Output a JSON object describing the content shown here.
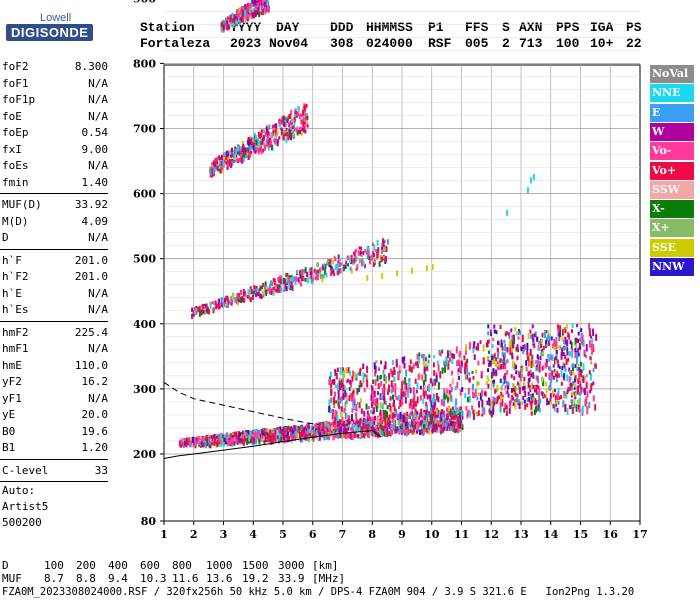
{
  "logo": {
    "line1": "Lowell",
    "line2": "DIGISONDE"
  },
  "header": {
    "labels": [
      "Station",
      "YYYY",
      "DAY",
      "DDD",
      "HHMMSS",
      "P1",
      "FFS",
      "S",
      "AXN",
      "PPS",
      "IGA",
      "PS"
    ],
    "values": [
      "Fortaleza",
      "2023",
      "Nov04",
      "308",
      "024000",
      "RSF",
      "005",
      "2",
      "713",
      "100",
      "10+",
      "22"
    ]
  },
  "params_group1": [
    {
      "name": "foF2",
      "value": "8.300"
    },
    {
      "name": "foF1",
      "value": "N/A"
    },
    {
      "name": "foF1p",
      "value": "N/A"
    },
    {
      "name": "foE",
      "value": "N/A"
    },
    {
      "name": "foEp",
      "value": "0.54"
    },
    {
      "name": "fxI",
      "value": "9.00"
    },
    {
      "name": "foEs",
      "value": "N/A"
    },
    {
      "name": "fmin",
      "value": "1.40"
    }
  ],
  "params_group2": [
    {
      "name": "MUF(D)",
      "value": "33.92"
    },
    {
      "name": "M(D)",
      "value": "4.09"
    },
    {
      "name": "D",
      "value": "N/A"
    }
  ],
  "params_group3": [
    {
      "name": "h`F",
      "value": "201.0"
    },
    {
      "name": "h`F2",
      "value": "201.0"
    },
    {
      "name": "h`E",
      "value": "N/A"
    },
    {
      "name": "h`Es",
      "value": "N/A"
    }
  ],
  "params_group4": [
    {
      "name": "hmF2",
      "value": "225.4"
    },
    {
      "name": "hmF1",
      "value": "N/A"
    },
    {
      "name": "hmE",
      "value": "110.0"
    },
    {
      "name": "yF2",
      "value": "16.2"
    },
    {
      "name": "yF1",
      "value": "N/A"
    },
    {
      "name": "yE",
      "value": "20.0"
    },
    {
      "name": "B0",
      "value": "19.6"
    },
    {
      "name": "B1",
      "value": "1.20"
    }
  ],
  "params_group5": [
    {
      "name": "C-level",
      "value": "33"
    }
  ],
  "autoscaling": {
    "line1": "Auto:",
    "line2": "Artist5",
    "line3": "500200"
  },
  "legend": [
    {
      "label": "NoVal",
      "color": "#8c8c8c"
    },
    {
      "label": "NNE",
      "color": "#1ed8f0"
    },
    {
      "label": "E",
      "color": "#3a9ff2"
    },
    {
      "label": "W",
      "color": "#b0009e"
    },
    {
      "label": "Vo-",
      "color": "#ff3a9a"
    },
    {
      "label": "Vo+",
      "color": "#ee0a44"
    },
    {
      "label": "SSW",
      "color": "#f4a6a6"
    },
    {
      "label": "X-",
      "color": "#0a7d0a"
    },
    {
      "label": "X+",
      "color": "#88bb66"
    },
    {
      "label": "SSE",
      "color": "#cccc00"
    },
    {
      "label": "NNW",
      "color": "#2a18cc"
    }
  ],
  "footer": {
    "d_label": "D",
    "d_values": [
      "100",
      "200",
      "400",
      "600",
      "800",
      "1000",
      "1500",
      "3000",
      "[km]"
    ],
    "muf_label": "MUF",
    "muf_values": [
      "8.7",
      "8.8",
      "9.4",
      "10.3",
      "11.6",
      "13.6",
      "19.2",
      "33.9",
      "[MHz]"
    ],
    "info_line": "FZA0M_2023308024000.RSF / 320fx256h 50 kHz 5.0 km / DPS-4 FZA0M 904 / 3.9 S 321.6 E   Ion2Png 1.3.20"
  },
  "chart_data": {
    "type": "scatter",
    "title": "",
    "xlabel": "",
    "ylabel": "",
    "xlim": [
      1,
      17
    ],
    "ylim": [
      80,
      900
    ],
    "x_ticks": [
      1,
      2,
      3,
      4,
      5,
      6,
      7,
      8,
      9,
      10,
      11,
      12,
      13,
      14,
      15,
      16,
      17
    ],
    "y_ticks": [
      80,
      200,
      300,
      400,
      500,
      600,
      700,
      800,
      900
    ],
    "grid": true,
    "echo_bands": [
      {
        "name": "1st hop F trace",
        "x_range": [
          1.5,
          11.0
        ],
        "h_start": [
          215,
          225
        ],
        "h_end": [
          240,
          260
        ]
      },
      {
        "name": "spread F",
        "x_range": [
          6.5,
          15.5
        ],
        "h_range": [
          250,
          430
        ]
      },
      {
        "name": "2nd hop",
        "x_range": [
          1.9,
          8.5
        ],
        "h_start": [
          415,
          425
        ],
        "h_end": [
          500,
          540
        ]
      },
      {
        "name": "3rd hop",
        "x_range": [
          2.5,
          5.8
        ],
        "h_start": [
          630,
          650
        ],
        "h_end": [
          700,
          730
        ]
      },
      {
        "name": "4th hop",
        "x_range": [
          2.9,
          4.5
        ],
        "h_start": [
          855,
          865
        ],
        "h_end": [
          885,
          900
        ]
      }
    ],
    "extra_series": [
      {
        "name": "SSE band",
        "color": "#cccc00",
        "x": [
          7.8,
          8.3,
          8.8,
          9.3,
          9.8,
          10.0
        ],
        "y": [
          475,
          478,
          482,
          486,
          490,
          492
        ]
      },
      {
        "name": "NNE isolated",
        "color": "#1ed8f0",
        "x": [
          12.5,
          13.2,
          13.3,
          13.4
        ],
        "y": [
          575,
          610,
          625,
          630
        ]
      }
    ],
    "profile_curves": [
      {
        "name": "profile-dashed",
        "style": "dashed",
        "x": [
          1.0,
          1.5,
          2.0,
          3.0,
          4.0,
          5.0,
          5.8,
          6.2
        ],
        "y": [
          310,
          295,
          285,
          275,
          265,
          255,
          248,
          245
        ]
      },
      {
        "name": "profile-solid",
        "style": "solid",
        "x": [
          1.0,
          1.5,
          2.0,
          3.0,
          4.0,
          5.0,
          6.0,
          7.0,
          8.0,
          8.3
        ],
        "y": [
          192,
          197,
          200,
          206,
          212,
          219,
          226,
          232,
          236,
          226
        ]
      }
    ]
  }
}
